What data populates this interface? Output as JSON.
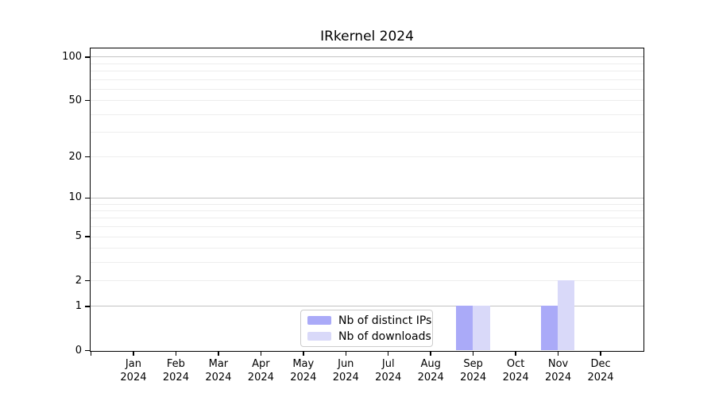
{
  "title": "IRkernel 2024",
  "legend": {
    "items": [
      {
        "label": "Nb of distinct IPs",
        "color": "#aaaaf8"
      },
      {
        "label": "Nb of downloads",
        "color": "#d9d9f9"
      }
    ]
  },
  "chart_data": {
    "type": "bar",
    "title": "IRkernel 2024",
    "categories": [
      "Jan 2024",
      "Feb 2024",
      "Mar 2024",
      "Apr 2024",
      "May 2024",
      "Jun 2024",
      "Jul 2024",
      "Aug 2024",
      "Sep 2024",
      "Oct 2024",
      "Nov 2024",
      "Dec 2024"
    ],
    "months": [
      "Jan",
      "Feb",
      "Mar",
      "Apr",
      "May",
      "Jun",
      "Jul",
      "Aug",
      "Sep",
      "Oct",
      "Nov",
      "Dec"
    ],
    "year_label": "2024",
    "series": [
      {
        "name": "Nb of distinct IPs",
        "color": "#aaaaf8",
        "values": [
          0,
          0,
          0,
          0,
          0,
          0,
          0,
          0,
          1,
          0,
          1,
          0
        ]
      },
      {
        "name": "Nb of downloads",
        "color": "#d9d9f9",
        "values": [
          0,
          0,
          0,
          0,
          0,
          0,
          0,
          0,
          1,
          0,
          2,
          0
        ]
      }
    ],
    "xlabel": "",
    "ylabel": "",
    "yscale": "log1p",
    "ylim": [
      0,
      114
    ],
    "y_ticks": [
      0,
      1,
      2,
      5,
      10,
      20,
      50,
      100
    ],
    "grid_major": [
      1,
      10,
      100
    ],
    "grid_minor": [
      2,
      3,
      4,
      5,
      6,
      7,
      8,
      9,
      20,
      30,
      40,
      50,
      60,
      70,
      80,
      90
    ],
    "grid": "horizontal",
    "legend_position": "inside-bottom-center"
  }
}
